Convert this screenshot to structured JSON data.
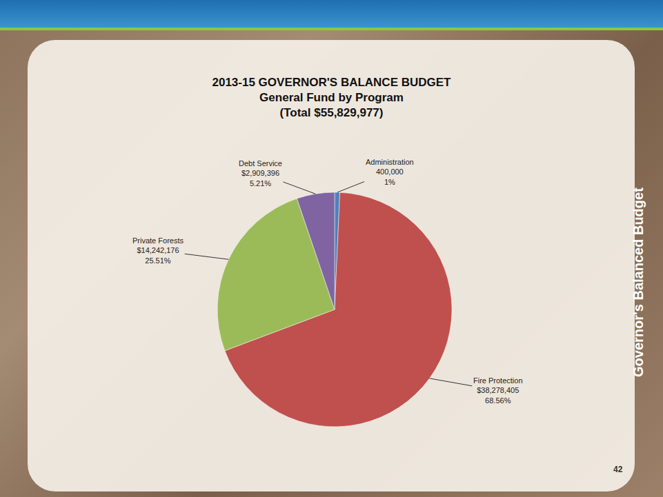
{
  "chart_data": {
    "type": "pie",
    "title": "2013-15 GOVERNOR'S BALANCE BUDGET",
    "subtitle": [
      "General Fund by Program",
      "(Total $55,829,977)"
    ],
    "categories": [
      "Administration",
      "Fire Protection",
      "Private Forests",
      "Debt Service"
    ],
    "values": [
      400000,
      38278405,
      14242176,
      2909396
    ],
    "value_labels": [
      "400,000",
      "$38,278,405",
      "$14,242,176",
      "$2,909,396"
    ],
    "percent_labels": [
      "1%",
      "68.56%",
      "25.51%",
      "5.21%"
    ],
    "colors": [
      "#4f81bd",
      "#c0504d",
      "#9bbb59",
      "#8064a2"
    ],
    "data_labels": true,
    "annotations": [
      "Governor's Balanced Budget",
      "42"
    ]
  }
}
